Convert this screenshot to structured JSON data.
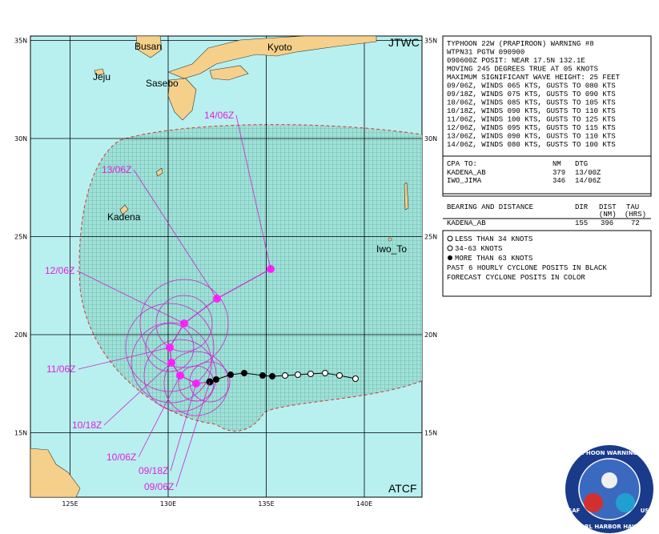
{
  "map": {
    "lat_labels": [
      "35N",
      "30N",
      "25N",
      "20N",
      "15N"
    ],
    "lon_labels": [
      "125E",
      "130E",
      "135E",
      "140E"
    ],
    "places": [
      "Busan",
      "Kyoto",
      "Jeju",
      "Sasebo",
      "Kadena",
      "Iwo_To"
    ],
    "agency": "JTWC",
    "system": "ATCF",
    "forecast_labels": [
      "14/06Z",
      "13/06Z",
      "12/06Z",
      "11/06Z",
      "10/18Z",
      "10/06Z",
      "09/18Z",
      "09/06Z"
    ]
  },
  "warning": {
    "lines": [
      "TYPHOON 22W (PRAPIROON) WARNING #8",
      "WTPN31 PGTW 090900",
      "090600Z POSIT: NEAR 17.5N 132.1E",
      "MOVING 245 DEGREES TRUE AT 05 KNOTS",
      "MAXIMUM SIGNIFICANT WAVE HEIGHT: 25 FEET",
      "09/06Z, WINDS 065 KTS, GUSTS TO 080 KTS",
      "09/18Z, WINDS 075 KTS, GUSTS TO 090 KTS",
      "10/06Z, WINDS 085 KTS, GUSTS TO 105 KTS",
      "10/18Z, WINDS 090 KTS, GUSTS TO 110 KTS",
      "11/06Z, WINDS 100 KTS, GUSTS TO 125 KTS",
      "12/06Z, WINDS 095 KTS, GUSTS TO 115 KTS",
      "13/06Z, WINDS 090 KTS, GUSTS TO 110 KTS",
      "14/06Z, WINDS 080 KTS, GUSTS TO 100 KTS"
    ]
  },
  "cpa": {
    "header": [
      "CPA TO:",
      "NM",
      "DTG"
    ],
    "rows": [
      [
        "KADENA_AB",
        "379",
        "13/00Z"
      ],
      [
        "IWO_JIMA",
        "346",
        "14/06Z"
      ]
    ]
  },
  "bearing": {
    "title": "BEARING AND DISTANCE",
    "header_top": [
      "DIR",
      "DIST",
      "TAU"
    ],
    "header_bottom": [
      "(NM)",
      "(HRS)"
    ],
    "rows": [
      [
        "KADENA_AB",
        "155",
        "396",
        "72"
      ]
    ]
  },
  "legend": {
    "items": [
      "LESS THAN 34 KNOTS",
      "34-63 KNOTS",
      "MORE THAN 63 KNOTS",
      "PAST 6 HOURLY CYCLONE POSITS IN BLACK",
      "FORECAST CYCLONE POSITS IN COLOR"
    ]
  },
  "logo": {
    "top": "JOINT TYPHOON WARNING CENTER",
    "bottom": "PEARL HARBOR HAWAII",
    "left": "USAF",
    "right": "USN"
  }
}
